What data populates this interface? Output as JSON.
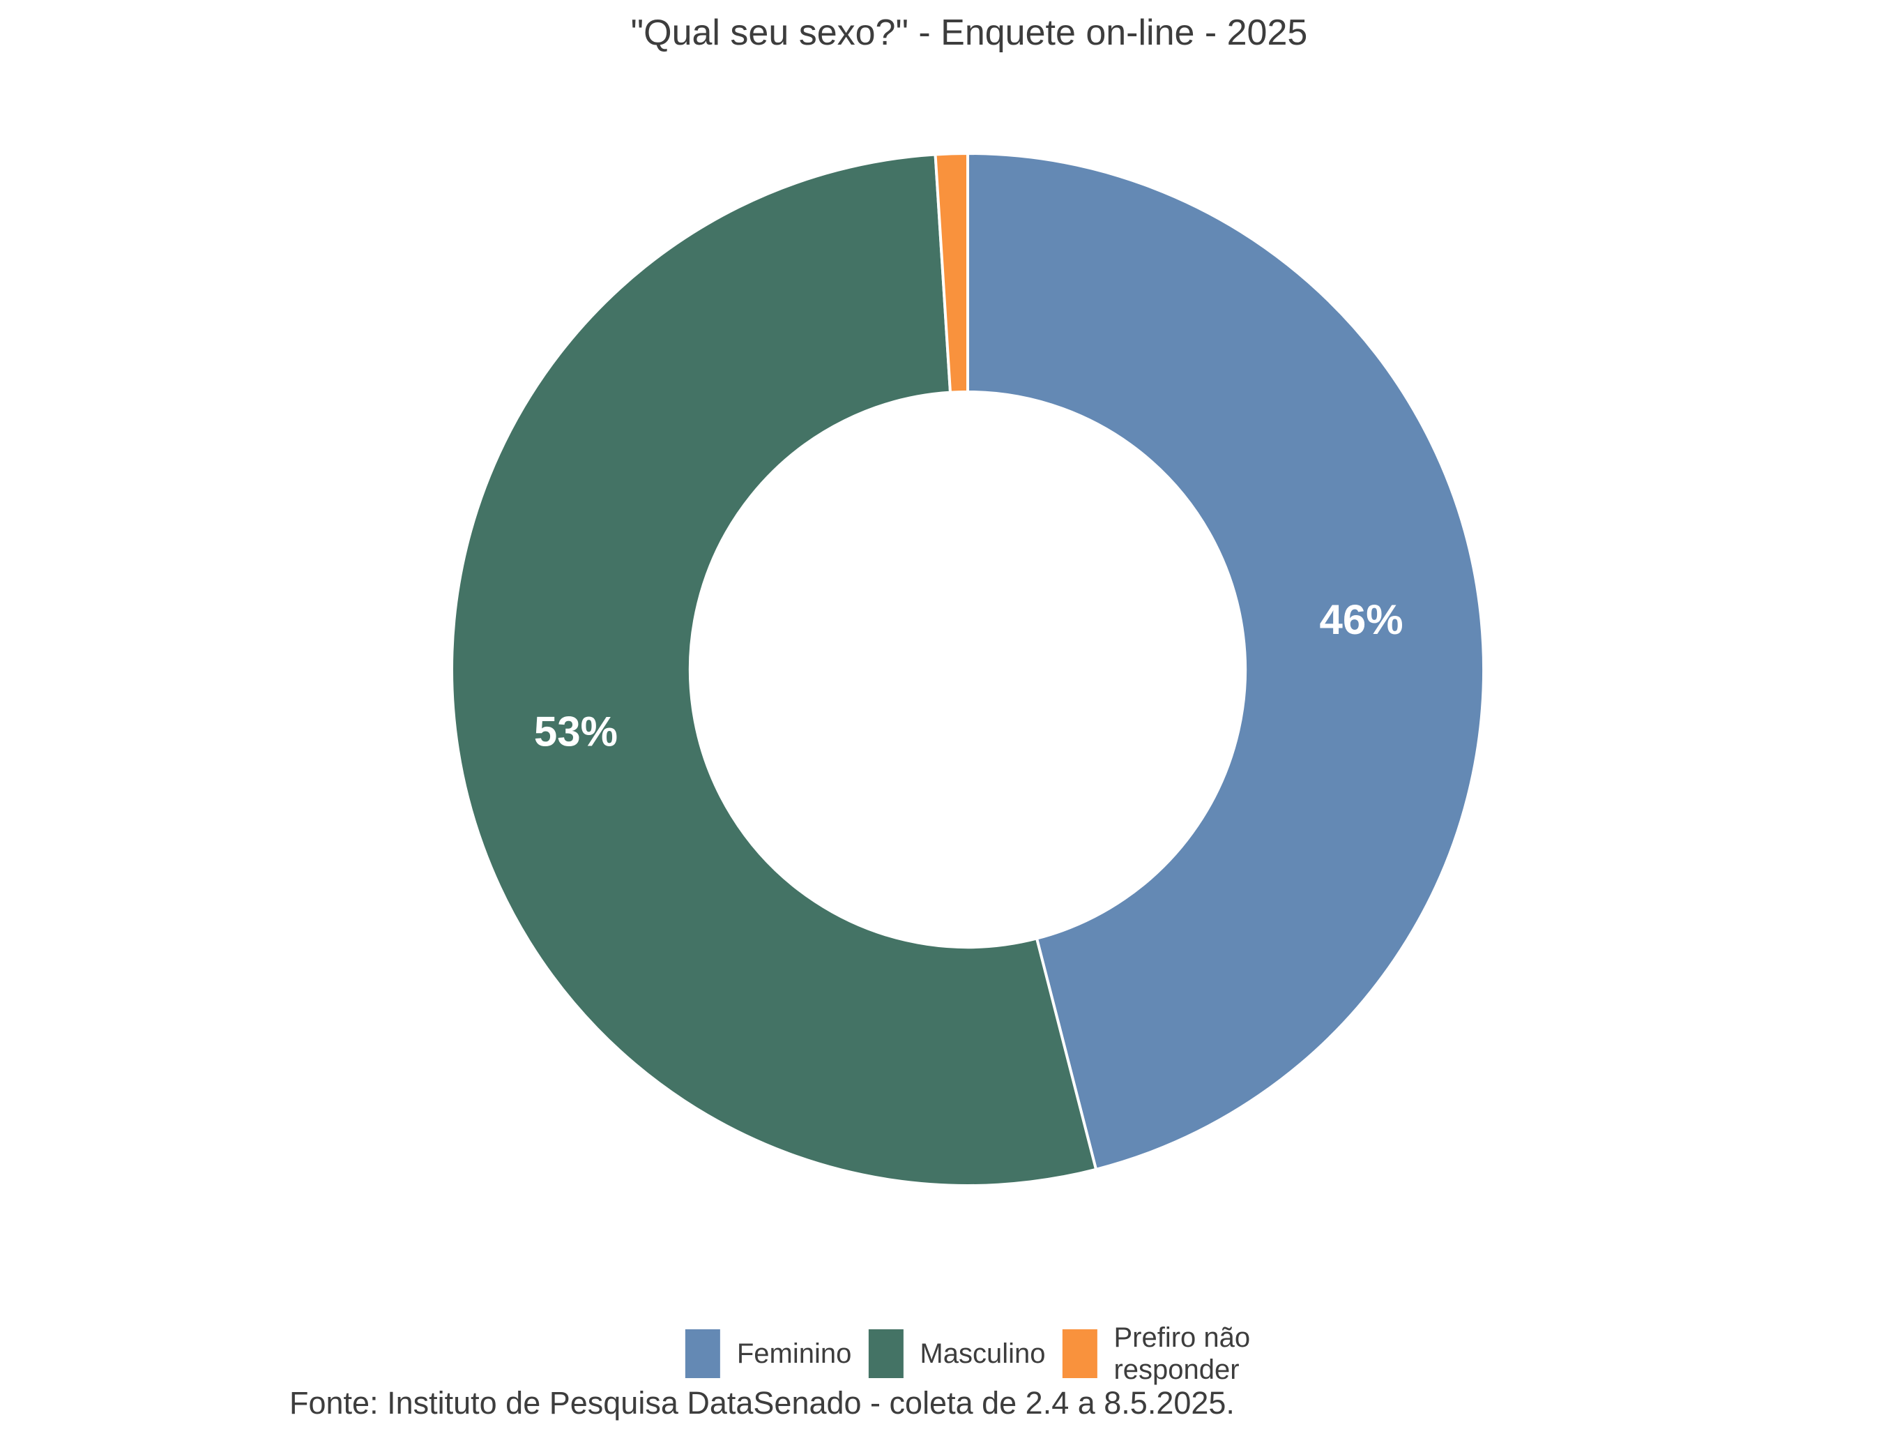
{
  "title": "\"Qual seu sexo?\" - Enquete on-line - 2025",
  "source_note": "Fonte: Instituto de Pesquisa DataSenado - coleta de 2.4 a 8.5.2025.",
  "chart_data": {
    "type": "pie",
    "subtype": "donut",
    "title": "\"Qual seu sexo?\" - Enquete on-line - 2025",
    "categories": [
      "Feminino",
      "Masculino",
      "Prefiro não responder"
    ],
    "values": [
      46,
      53,
      1
    ],
    "unit": "%",
    "data_labels": [
      "46%",
      "53%",
      ""
    ],
    "colors": [
      "#6489B4",
      "#447365",
      "#F9923D"
    ],
    "data_label_color": "#FFFFFF",
    "slice_border_color": "#FFFFFF",
    "start_angle_deg": 0,
    "direction": "clockwise",
    "donut_hole_ratio": 0.538,
    "legend_position": "bottom",
    "background": "#FFFFFF",
    "source": "Fonte: Instituto de Pesquisa DataSenado - coleta de 2.4 a 8.5.2025."
  },
  "legend": {
    "items": [
      {
        "label": "Feminino",
        "display": "Feminino",
        "color": "#6489B4"
      },
      {
        "label": "Masculino",
        "display": "Masculino",
        "color": "#447365"
      },
      {
        "label": "Prefiro não responder",
        "display": "Prefiro não\nresponder",
        "color": "#F9923D"
      }
    ]
  }
}
